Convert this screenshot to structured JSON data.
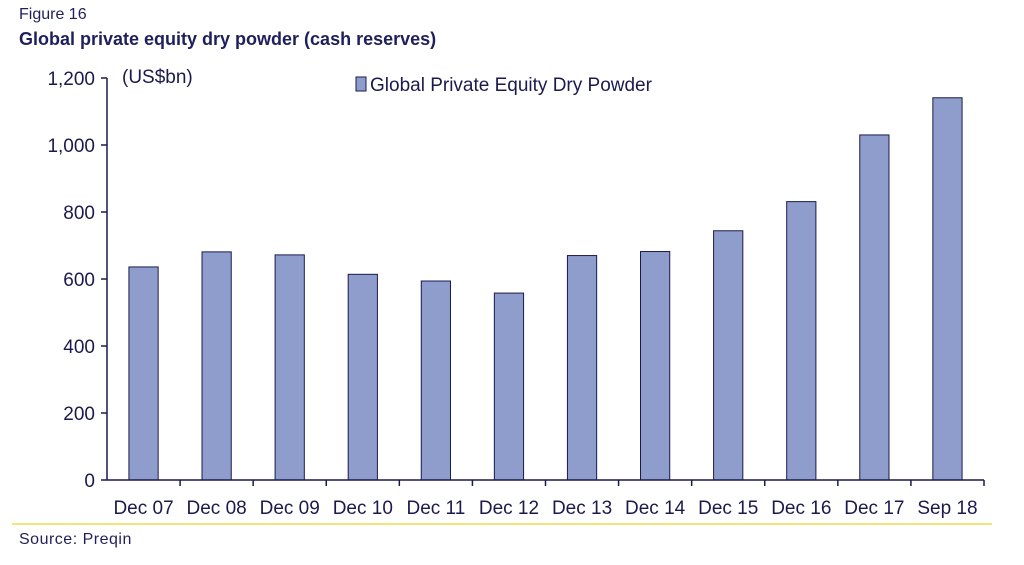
{
  "figure": {
    "label": "Figure 16",
    "title": "Global private equity dry powder (cash reserves)",
    "source": "Source: Preqin"
  },
  "colors": {
    "bar_fill": "#8e9dcc",
    "bar_stroke": "#1a1a4e",
    "axis": "#1a1a4e",
    "rule": "#f2e37a"
  },
  "chart_data": {
    "type": "bar",
    "title": "Global private equity dry powder (cash reserves)",
    "unit_label": "(US$bn)",
    "xlabel": "",
    "ylabel": "",
    "categories": [
      "Dec 07",
      "Dec 08",
      "Dec 09",
      "Dec 10",
      "Dec 11",
      "Dec 12",
      "Dec 13",
      "Dec 14",
      "Dec 15",
      "Dec 16",
      "Dec 17",
      "Sep 18"
    ],
    "series": [
      {
        "name": "Global Private Equity Dry Powder",
        "values": [
          636,
          681,
          672,
          614,
          594,
          558,
          670,
          682,
          744,
          831,
          1030,
          1141
        ]
      }
    ],
    "ylim": [
      0,
      1200
    ],
    "yticks": [
      0,
      200,
      400,
      600,
      800,
      1000,
      1200
    ],
    "ytick_labels": [
      "0",
      "200",
      "400",
      "600",
      "800",
      "1,000",
      "1,200"
    ],
    "grid": false,
    "legend_position": "top-center"
  }
}
